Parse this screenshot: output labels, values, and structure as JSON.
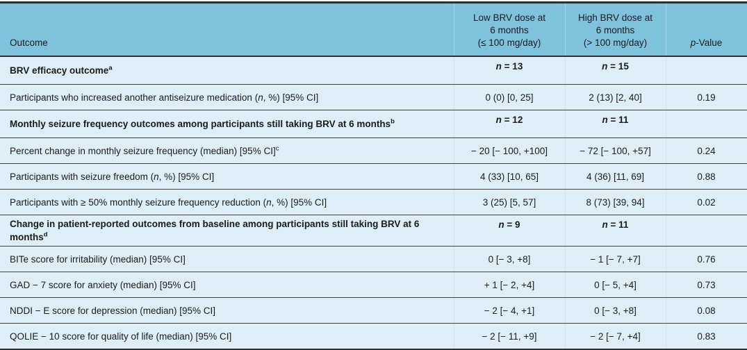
{
  "table": {
    "header": {
      "outcome": "Outcome",
      "low_lines": [
        "Low BRV dose at",
        "6 months",
        "(≤ 100 mg/day)"
      ],
      "high_lines": [
        "High BRV dose at",
        "6 months",
        "(> 100 mg/day)"
      ],
      "p_html": "<i>p</i>-Value"
    },
    "rows": [
      {
        "type": "section",
        "label_html": "BRV efficacy outcome<sup>a</sup>",
        "low_html": "<i>n</i> = 13",
        "high_html": "<i>n</i> = 15",
        "p": ""
      },
      {
        "type": "data",
        "label_html": "Participants who increased another antiseizure medication (<i>n</i>, %) [95% CI]",
        "low_html": "0 (0) [0, 25]",
        "high_html": "2 (13) [2, 40]",
        "p": "0.19"
      },
      {
        "type": "section",
        "label_html": "Monthly seizure frequency outcomes among participants still taking BRV at 6 months<sup>b</sup>",
        "low_html": "<i>n</i> = 12",
        "high_html": "<i>n</i> = 11",
        "p": ""
      },
      {
        "type": "data",
        "label_html": "Percent change in monthly seizure frequency (median) [95% CI]<sup>c</sup>",
        "low_html": "− 20 [− 100, +100]",
        "high_html": "− 72 [− 100, +57]",
        "p": "0.24"
      },
      {
        "type": "data",
        "label_html": "Participants with seizure freedom (<i>n</i>, %) [95% CI]",
        "low_html": "4 (33) [10, 65]",
        "high_html": "4 (36) [11, 69]",
        "p": "0.88"
      },
      {
        "type": "data",
        "label_html": "Participants with ≥ 50% monthly seizure frequency reduction (<i>n</i>, %) [95% CI]",
        "low_html": "3 (25) [5, 57]",
        "high_html": "8 (73) [39, 94]",
        "p": "0.02"
      },
      {
        "type": "section",
        "label_html": "Change in patient-reported outcomes from baseline among participants still taking BRV at 6 months<sup>d</sup>",
        "low_html": "<i>n</i> = 9",
        "high_html": "<i>n</i> = 11",
        "p": ""
      },
      {
        "type": "data",
        "label_html": "BITe score for irritability (median) [95% CI]",
        "low_html": "0 [− 3, +8]",
        "high_html": "− 1 [− 7, +7]",
        "p": "0.76"
      },
      {
        "type": "data",
        "label_html": "GAD − 7 score for anxiety (median) [95% CI]",
        "low_html": "+ 1 [− 2, +4]",
        "high_html": "0 [− 5, +4]",
        "p": "0.73"
      },
      {
        "type": "data",
        "label_html": "NDDI − E score for depression (median) [95% CI]",
        "low_html": "− 2 [− 4, +1]",
        "high_html": "0 [− 3, +8]",
        "p": "0.08"
      },
      {
        "type": "data",
        "label_html": "QOLIE − 10 score for quality of life (median) [95% CI]",
        "low_html": "− 2 [− 11, +9]",
        "high_html": "− 2 [− 7, +4]",
        "p": "0.83"
      }
    ],
    "colors": {
      "header_bg": "#7ec2de",
      "body_bg": "#ddeef6",
      "rule_dark": "#2e2e2e",
      "rule_row": "#414141",
      "text": "#1b1b1b"
    }
  }
}
